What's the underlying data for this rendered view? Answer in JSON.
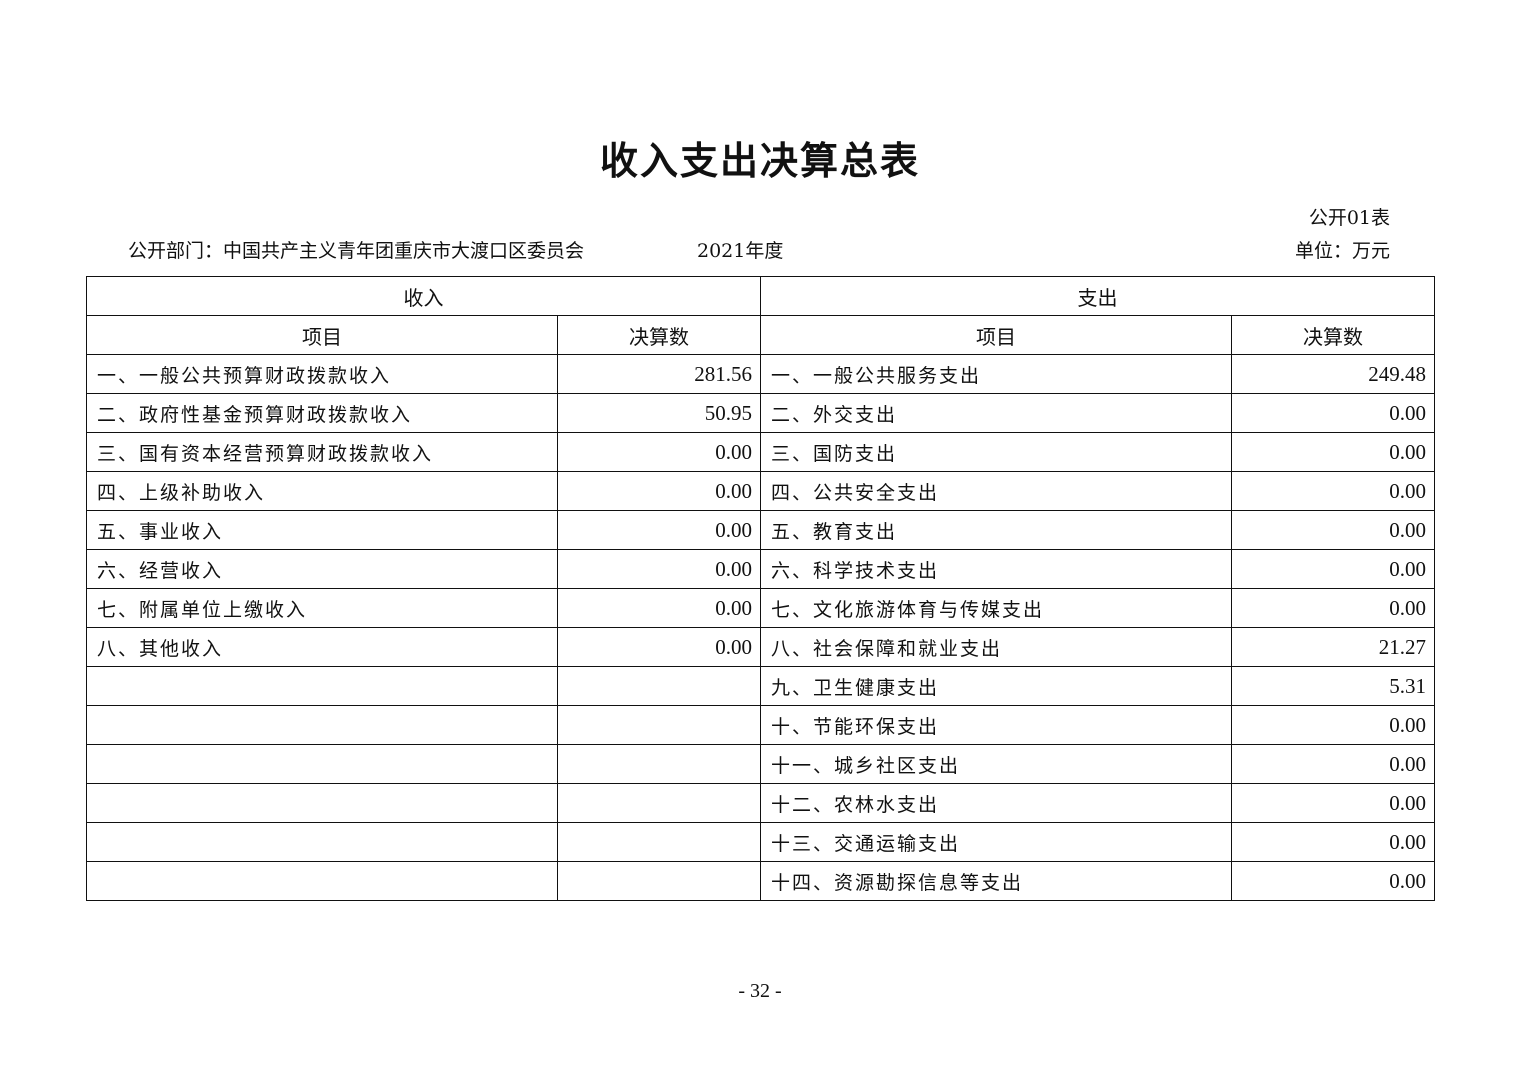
{
  "title": "收入支出决算总表",
  "table_no": "公开01表",
  "department": "公开部门：中国共产主义青年团重庆市大渡口区委员会",
  "year": "2021年度",
  "unit": "单位：万元",
  "table": {
    "income_header": "收入",
    "expense_header": "支出",
    "item_header": "项目",
    "amount_header": "决算数",
    "rows": [
      {
        "income_item": "一、一般公共预算财政拨款收入",
        "income_amount": "281.56",
        "expense_item": "一、一般公共服务支出",
        "expense_amount": "249.48"
      },
      {
        "income_item": "二、政府性基金预算财政拨款收入",
        "income_amount": "50.95",
        "expense_item": "二、外交支出",
        "expense_amount": "0.00"
      },
      {
        "income_item": "三、国有资本经营预算财政拨款收入",
        "income_amount": "0.00",
        "expense_item": "三、国防支出",
        "expense_amount": "0.00"
      },
      {
        "income_item": "四、上级补助收入",
        "income_amount": "0.00",
        "expense_item": "四、公共安全支出",
        "expense_amount": "0.00"
      },
      {
        "income_item": "五、事业收入",
        "income_amount": "0.00",
        "expense_item": "五、教育支出",
        "expense_amount": "0.00"
      },
      {
        "income_item": "六、经营收入",
        "income_amount": "0.00",
        "expense_item": "六、科学技术支出",
        "expense_amount": "0.00"
      },
      {
        "income_item": "七、附属单位上缴收入",
        "income_amount": "0.00",
        "expense_item": "七、文化旅游体育与传媒支出",
        "expense_amount": "0.00"
      },
      {
        "income_item": "八、其他收入",
        "income_amount": "0.00",
        "expense_item": "八、社会保障和就业支出",
        "expense_amount": "21.27"
      },
      {
        "income_item": "",
        "income_amount": "",
        "expense_item": "九、卫生健康支出",
        "expense_amount": "5.31"
      },
      {
        "income_item": "",
        "income_amount": "",
        "expense_item": "十、节能环保支出",
        "expense_amount": "0.00"
      },
      {
        "income_item": "",
        "income_amount": "",
        "expense_item": "十一、城乡社区支出",
        "expense_amount": "0.00"
      },
      {
        "income_item": "",
        "income_amount": "",
        "expense_item": "十二、农林水支出",
        "expense_amount": "0.00"
      },
      {
        "income_item": "",
        "income_amount": "",
        "expense_item": "十三、交通运输支出",
        "expense_amount": "0.00"
      },
      {
        "income_item": "",
        "income_amount": "",
        "expense_item": "十四、资源勘探信息等支出",
        "expense_amount": "0.00"
      }
    ]
  },
  "page_number": "- 32 -"
}
